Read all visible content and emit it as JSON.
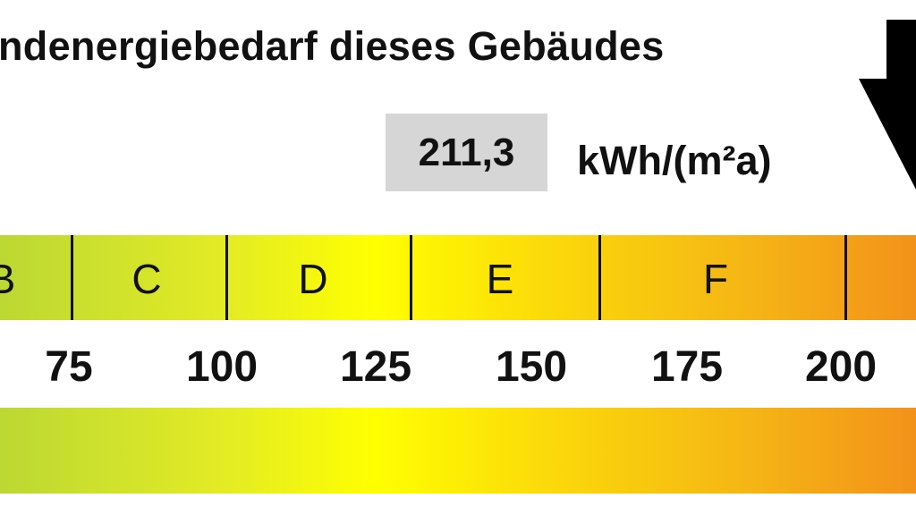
{
  "header": {
    "title": "ndenergiebedarf dieses Gebäudes"
  },
  "value": {
    "amount": "211,3",
    "unit": "kWh/(m²a)"
  },
  "scale": {
    "classes": [
      "B",
      "C",
      "D",
      "E",
      "F"
    ],
    "ticks": [
      "75",
      "100",
      "125",
      "150",
      "175",
      "200"
    ],
    "colors": {
      "green": "#bcd833",
      "yellow": "#ffff00",
      "orange": "#f3921a",
      "value_box": "#d6d6d6"
    }
  },
  "indicator": {
    "icon": "arrow-down-icon"
  }
}
